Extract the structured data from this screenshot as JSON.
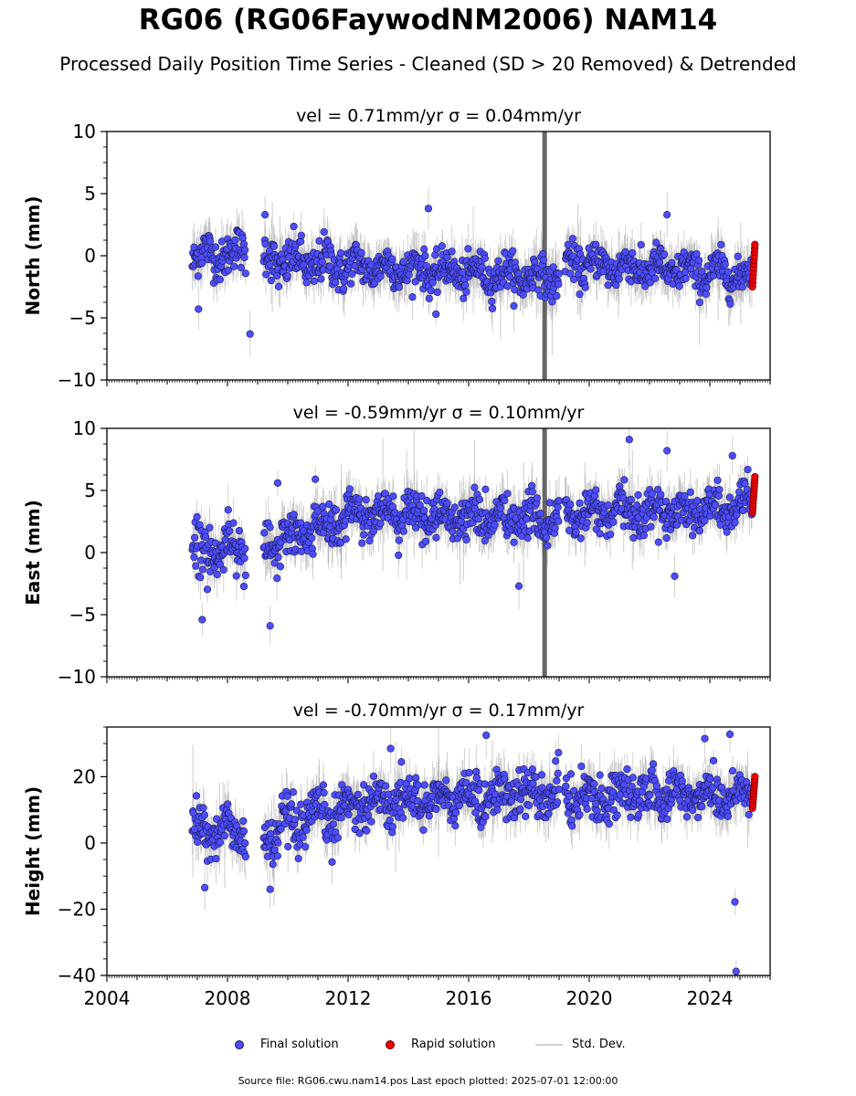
{
  "figure": {
    "title": "RG06 (RG06FaywodNM2006) NAM14",
    "subtitle": "Processed Daily Position Time Series - Cleaned (SD > 20 Removed) & Detrended",
    "source_line": "Source file: RG06.cwu.nam14.pos  Last epoch plotted: 2025-07-01 12:00:00"
  },
  "legend": {
    "final_label": "Final solution",
    "rapid_label": "Rapid solution",
    "sd_label": "Std. Dev."
  },
  "colors": {
    "final": "#4d4dff",
    "final_edge": "#1a1a4d",
    "rapid": "#ee0000",
    "rapid_edge": "#660000",
    "errorbar": "#9a9a9a",
    "errorbar_dense": "#555555"
  },
  "chart_data": [
    {
      "type": "scatter",
      "panel": "north",
      "title": "vel = 0.71mm/yr   σ = 0.04mm/yr",
      "ylabel": "North (mm)",
      "xlim": [
        "2004-01-01",
        "2026-01-01"
      ],
      "ylim": [
        -10,
        10
      ],
      "yticks": [
        -10,
        -5,
        0,
        5,
        10
      ],
      "series": [
        {
          "name": "Final solution",
          "segments": [
            {
              "x": [
                "2006-11-01",
                "2008-08-15"
              ],
              "mean": [
                0.0,
                0.2
              ],
              "spread": 1.1
            },
            {
              "x": [
                "2009-03-15",
                "2011-12-31"
              ],
              "mean": [
                -0.4,
                -0.8
              ],
              "spread": 1.2
            },
            {
              "x": [
                "2012-01-01",
                "2019-01-01"
              ],
              "mean": [
                -0.8,
                -1.8
              ],
              "spread": 1.0
            },
            {
              "x": [
                "2019-03-15",
                "2025-05-31"
              ],
              "mean": [
                -0.6,
                -1.6
              ],
              "spread": 1.0
            }
          ],
          "outliers": [
            [
              "2007-01-15",
              -4.3
            ],
            [
              "2008-10-01",
              -6.3
            ],
            [
              "2009-04-01",
              3.3
            ],
            [
              "2014-09-01",
              3.8
            ],
            [
              "2014-12-01",
              -4.7
            ],
            [
              "2022-08-01",
              3.3
            ]
          ]
        },
        {
          "name": "Rapid solution",
          "x": [
            "2025-06-01",
            "2025-07-01"
          ],
          "y": [
            -2.5,
            0.9
          ]
        }
      ]
    },
    {
      "type": "scatter",
      "panel": "east",
      "title": "vel = -0.59mm/yr   σ = 0.10mm/yr",
      "ylabel": "East (mm)",
      "xlim": [
        "2004-01-01",
        "2026-01-01"
      ],
      "ylim": [
        -10,
        10
      ],
      "yticks": [
        -10,
        -5,
        0,
        5,
        10
      ],
      "series": [
        {
          "name": "Final solution",
          "segments": [
            {
              "x": [
                "2006-11-01",
                "2008-08-15"
              ],
              "mean": [
                0.0,
                0.7
              ],
              "spread": 1.3
            },
            {
              "x": [
                "2009-03-15",
                "2011-12-31"
              ],
              "mean": [
                0.2,
                3.0
              ],
              "spread": 1.3
            },
            {
              "x": [
                "2012-01-01",
                "2019-01-01"
              ],
              "mean": [
                3.2,
                2.6
              ],
              "spread": 1.1
            },
            {
              "x": [
                "2019-03-15",
                "2025-05-31"
              ],
              "mean": [
                3.0,
                3.6
              ],
              "spread": 1.1
            }
          ],
          "outliers": [
            [
              "2007-03-01",
              -5.4
            ],
            [
              "2009-06-01",
              -5.9
            ],
            [
              "2009-09-01",
              5.6
            ],
            [
              "2010-12-01",
              5.9
            ],
            [
              "2017-09-01",
              -2.7
            ],
            [
              "2021-05-01",
              9.1
            ],
            [
              "2022-08-01",
              8.2
            ],
            [
              "2022-11-01",
              -1.9
            ],
            [
              "2024-10-01",
              7.8
            ]
          ]
        },
        {
          "name": "Rapid solution",
          "x": [
            "2025-06-01",
            "2025-07-01"
          ],
          "y": [
            3.2,
            6.1
          ]
        }
      ]
    },
    {
      "type": "scatter",
      "panel": "height",
      "title": "vel = -0.70mm/yr   σ = 0.17mm/yr",
      "ylabel": "Height (mm)",
      "xlabel": "",
      "xlim": [
        "2004-01-01",
        "2026-01-01"
      ],
      "ylim": [
        -40,
        35
      ],
      "yticks": [
        -40,
        -20,
        0,
        20
      ],
      "xticks": [
        "2004",
        "2008",
        "2012",
        "2016",
        "2020",
        "2024"
      ],
      "series": [
        {
          "name": "Final solution",
          "segments": [
            {
              "x": [
                "2006-11-01",
                "2008-08-15"
              ],
              "mean": [
                4.0,
                3.0
              ],
              "spread": 5.0
            },
            {
              "x": [
                "2009-03-15",
                "2011-12-31"
              ],
              "mean": [
                2.0,
                10.0
              ],
              "spread": 5.0
            },
            {
              "x": [
                "2012-01-01",
                "2019-01-01"
              ],
              "mean": [
                12.0,
                15.0
              ],
              "spread": 4.5
            },
            {
              "x": [
                "2019-03-15",
                "2025-05-31"
              ],
              "mean": [
                14.0,
                15.0
              ],
              "spread": 4.5
            }
          ],
          "outliers": [
            [
              "2007-04-01",
              -13.5
            ],
            [
              "2009-06-01",
              -14.0
            ],
            [
              "2013-06-01",
              28.5
            ],
            [
              "2016-08-01",
              32.5
            ],
            [
              "2023-11-01",
              31.5
            ],
            [
              "2024-09-01",
              32.8
            ],
            [
              "2024-11-01",
              -17.8
            ],
            [
              "2024-11-15",
              -38.8
            ]
          ]
        },
        {
          "name": "Rapid solution",
          "x": [
            "2025-06-01",
            "2025-07-01"
          ],
          "y": [
            10.5,
            20.0
          ]
        }
      ]
    }
  ]
}
